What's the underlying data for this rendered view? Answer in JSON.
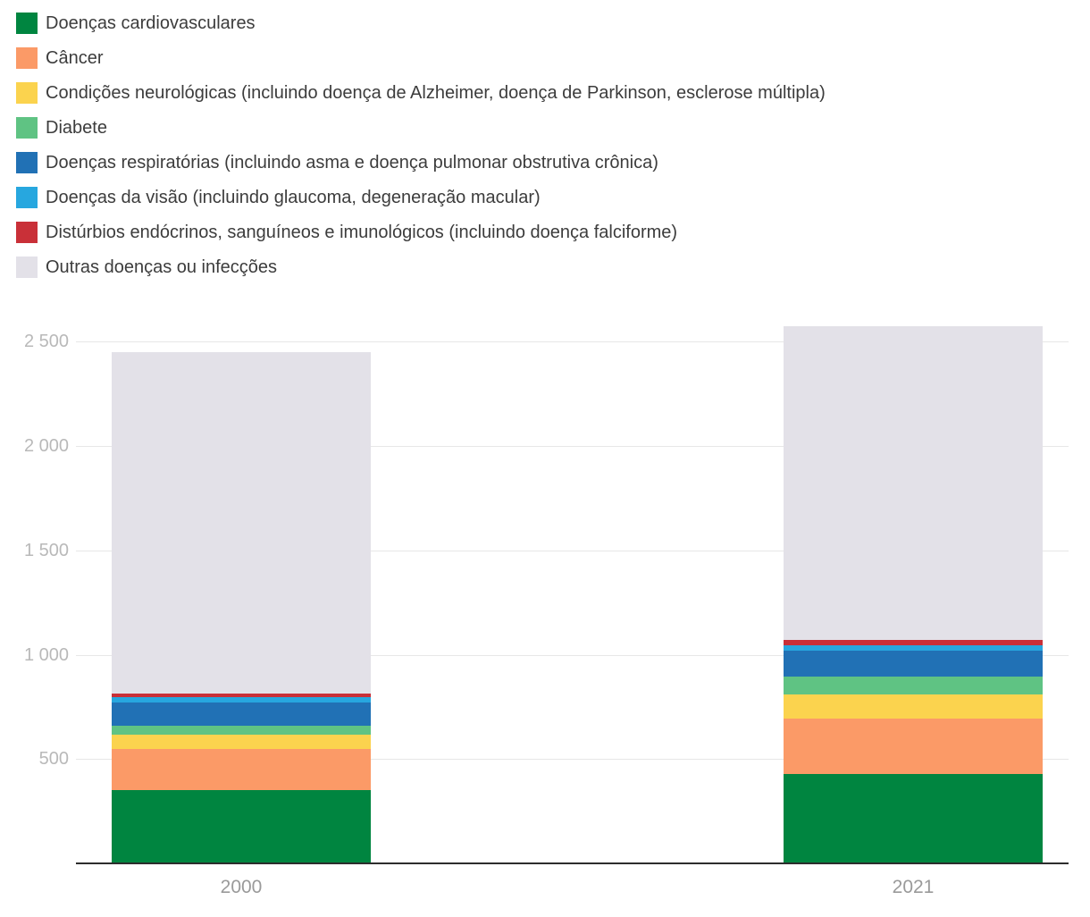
{
  "legend": {
    "items": [
      {
        "label": "Doenças cardiovasculares",
        "color": "#008540"
      },
      {
        "label": "Câncer",
        "color": "#FB9A67"
      },
      {
        "label": "Condições neurológicas (incluindo doença de Alzheimer, doença de Parkinson, esclerose múltipla)",
        "color": "#FBD34E"
      },
      {
        "label": "Diabete",
        "color": "#5FC383"
      },
      {
        "label": "Doenças respiratórias (incluindo asma e doença pulmonar obstrutiva crônica)",
        "color": "#2171B5"
      },
      {
        "label": "Doenças da visão (incluindo glaucoma, degeneração macular)",
        "color": "#27A7DF"
      },
      {
        "label": "Distúrbios endócrinos, sanguíneos e imunológicos (incluindo doença falciforme)",
        "color": "#C93038"
      },
      {
        "label": "Outras doenças ou infecções",
        "color": "#E3E1E8"
      }
    ]
  },
  "chart_data": {
    "type": "bar",
    "stacked": true,
    "title": "",
    "xlabel": "",
    "ylabel": "",
    "categories": [
      "2000",
      "2021"
    ],
    "series": [
      {
        "name": "Doenças cardiovasculares",
        "color": "#008540",
        "values": [
          350,
          430
        ]
      },
      {
        "name": "Câncer",
        "color": "#FB9A67",
        "values": [
          200,
          265
        ]
      },
      {
        "name": "Condições neurológicas (incluindo doença de Alzheimer, doença de Parkinson, esclerose múltipla)",
        "color": "#FBD34E",
        "values": [
          65,
          115
        ]
      },
      {
        "name": "Diabete",
        "color": "#5FC383",
        "values": [
          45,
          85
        ]
      },
      {
        "name": "Doenças respiratórias (incluindo asma e doença pulmonar obstrutiva crônica)",
        "color": "#2171B5",
        "values": [
          110,
          125
        ]
      },
      {
        "name": "Doenças da visão (incluindo glaucoma, degeneração macular)",
        "color": "#27A7DF",
        "values": [
          25,
          25
        ]
      },
      {
        "name": "Distúrbios endócrinos, sanguíneos e imunológicos (incluindo doença falciforme)",
        "color": "#C93038",
        "values": [
          20,
          25
        ]
      },
      {
        "name": "Outras doenças ou infecções",
        "color": "#E3E1E8",
        "values": [
          1635,
          1505
        ]
      }
    ],
    "totals": [
      2450,
      2570
    ],
    "yticks": [
      {
        "value": 500,
        "label": "500"
      },
      {
        "value": 1000,
        "label": "1 000"
      },
      {
        "value": 1500,
        "label": "1 500"
      },
      {
        "value": 2000,
        "label": "2 000"
      },
      {
        "value": 2500,
        "label": "2 500"
      }
    ],
    "ylim": [
      0,
      2600
    ],
    "grid": true,
    "legend_position": "top-left"
  }
}
